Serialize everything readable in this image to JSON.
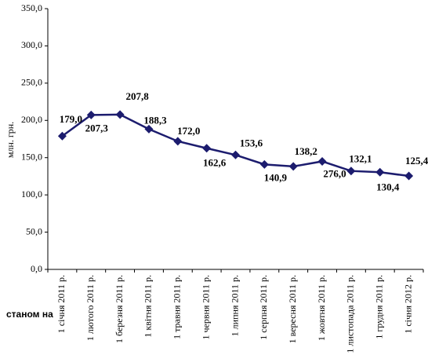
{
  "chart_data": {
    "type": "line",
    "y_label": "млн. грн.",
    "x_label": "станом на",
    "categories": [
      "1 січня 2011 р.",
      "1 лютого 2011 р.",
      "1 березня 2011 р.",
      "1 квітня 2011 р.",
      "1 травня 2011 р.",
      "1 червня 2011 р.",
      "1 липня 2011 р.",
      "1 серпня 2011 р.",
      "1 вересня 2011 р.",
      "1 жовтня 2011 р.",
      "1 листопада 2011 р.",
      "1 грудня 2011 р.",
      "1 січня 2012 р."
    ],
    "series": [
      {
        "name": "млн. грн.",
        "color": "#1c1c6e",
        "values": [
          179.0,
          207.3,
          207.8,
          188.3,
          172.0,
          162.6,
          153.6,
          140.9,
          138.2,
          145,
          132.1,
          130.4,
          125.4
        ],
        "value_labels": [
          "179,0",
          "207,3",
          "207,8",
          "188,3",
          "172,0",
          "162,6",
          "153,6",
          "140,9",
          "138,2",
          null,
          "132,1",
          "130,4",
          "125,4"
        ]
      }
    ],
    "annotations": [
      "276,0"
    ],
    "ylim": [
      0,
      350
    ],
    "yticks": [
      {
        "value": 0,
        "label": "0,0"
      },
      {
        "value": 50,
        "label": "50,0"
      },
      {
        "value": 100,
        "label": "100,0"
      },
      {
        "value": 150,
        "label": "150,0"
      },
      {
        "value": 200,
        "label": "200,0"
      },
      {
        "value": 250,
        "label": "250,0"
      },
      {
        "value": 300,
        "label": "300,0"
      },
      {
        "value": 350,
        "label": "350,0"
      }
    ],
    "grid": false
  }
}
